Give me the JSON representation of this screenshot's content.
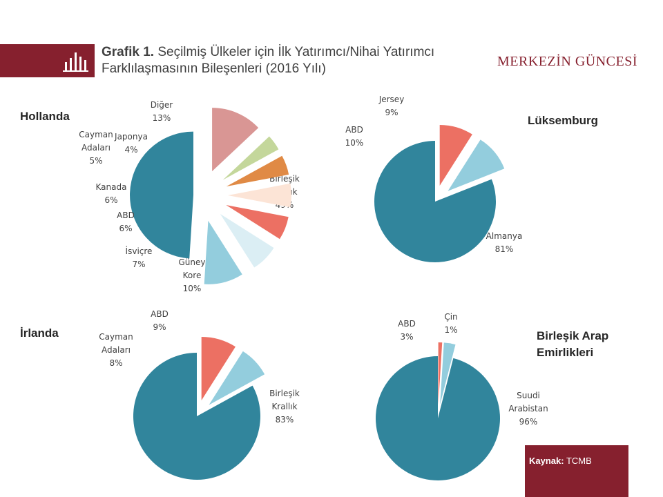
{
  "header": {
    "title_prefix": "Grafik 1.",
    "title_line1": "Seçilmiş Ülkeler için İlk Yatırımcı/Nihai Yatırımcı",
    "title_line2": "Farklılaşmasının Bileşenleri (2016 Yılı)",
    "brand": "MERKEZİN GÜNCESİ",
    "icon": "bar-chart-icon"
  },
  "source": {
    "label": "Kaynak:",
    "value": "TCMB"
  },
  "colors": {
    "teal": "#31859c",
    "light_blue": "#93cddd",
    "coral": "#ec7063",
    "pale_blue": "#dbeef4",
    "peach": "#fce4d6",
    "orange": "#e08a45",
    "light_green": "#c4d79b",
    "dusty_rose": "#d99694",
    "brand": "#86202e"
  },
  "chart_data": [
    {
      "type": "pie",
      "title": "Hollanda",
      "slices": [
        {
          "label": "Birleşik Krallık",
          "value": 49,
          "value_label": "49%",
          "color": "#31859c"
        },
        {
          "label": "Güney Kore",
          "value": 10,
          "value_label": "10%",
          "color": "#93cddd"
        },
        {
          "label": "İsviçre",
          "value": 7,
          "value_label": "7%",
          "color": "#dbeef4"
        },
        {
          "label": "ABD",
          "value": 6,
          "value_label": "6%",
          "color": "#ec7063"
        },
        {
          "label": "Kanada",
          "value": 6,
          "value_label": "6%",
          "color": "#fce4d6"
        },
        {
          "label": "Cayman Adaları",
          "value": 5,
          "value_label": "5%",
          "color": "#e08a45"
        },
        {
          "label": "Japonya",
          "value": 4,
          "value_label": "4%",
          "color": "#c4d79b"
        },
        {
          "label": "Diğer",
          "value": 13,
          "value_label": "13%",
          "color": "#d99694"
        }
      ]
    },
    {
      "type": "pie",
      "title": "Lüksemburg",
      "slices": [
        {
          "label": "Almanya",
          "value": 81,
          "value_label": "81%",
          "color": "#31859c"
        },
        {
          "label": "ABD",
          "value": 10,
          "value_label": "10%",
          "color": "#93cddd"
        },
        {
          "label": "Jersey",
          "value": 9,
          "value_label": "9%",
          "color": "#ec7063"
        }
      ]
    },
    {
      "type": "pie",
      "title": "İrlanda",
      "slices": [
        {
          "label": "Birleşik Krallık",
          "value": 83,
          "value_label": "83%",
          "color": "#31859c"
        },
        {
          "label": "Cayman Adaları",
          "value": 8,
          "value_label": "8%",
          "color": "#93cddd"
        },
        {
          "label": "ABD",
          "value": 9,
          "value_label": "9%",
          "color": "#ec7063"
        }
      ]
    },
    {
      "type": "pie",
      "title": "Birleşik Arap Emirlikleri",
      "slices": [
        {
          "label": "Suudi Arabistan",
          "value": 96,
          "value_label": "96%",
          "color": "#31859c"
        },
        {
          "label": "ABD",
          "value": 3,
          "value_label": "3%",
          "color": "#93cddd"
        },
        {
          "label": "Çin",
          "value": 1,
          "value_label": "1%",
          "color": "#ec7063"
        }
      ]
    }
  ]
}
